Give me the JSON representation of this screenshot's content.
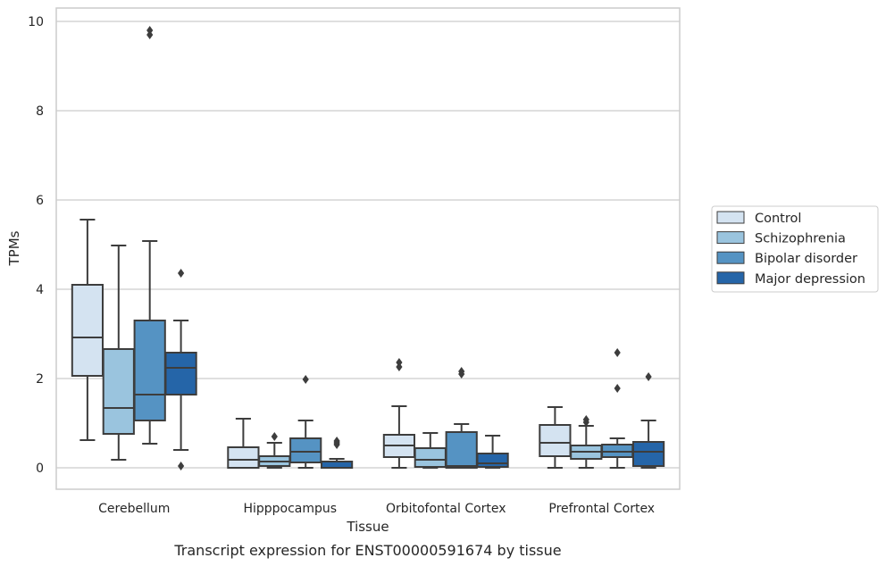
{
  "caption": "Transcript expression for ENST00000591674 by tissue",
  "chart_data": {
    "type": "box",
    "xlabel": "Tissue",
    "ylabel": "TPMs",
    "ylim": [
      -0.48,
      10.3
    ],
    "yticks": [
      0,
      2,
      4,
      6,
      8,
      10
    ],
    "grid": "horizontal",
    "legend_position": "right",
    "categories": [
      "Cerebellum",
      "Hipppocampus",
      "Orbitofontal Cortex",
      "Prefrontal Cortex"
    ],
    "series": [
      {
        "name": "Control",
        "color": "#d4e3f1",
        "boxes": [
          {
            "whislo": 0.62,
            "q1": 2.06,
            "med": 2.92,
            "q3": 4.1,
            "whishi": 5.56,
            "fliers": []
          },
          {
            "whislo": 0.0,
            "q1": 0.0,
            "med": 0.18,
            "q3": 0.46,
            "whishi": 1.1,
            "fliers": []
          },
          {
            "whislo": 0.0,
            "q1": 0.24,
            "med": 0.5,
            "q3": 0.74,
            "whishi": 1.38,
            "fliers": [
              2.26,
              2.36
            ]
          },
          {
            "whislo": 0.0,
            "q1": 0.26,
            "med": 0.56,
            "q3": 0.96,
            "whishi": 1.36,
            "fliers": []
          }
        ]
      },
      {
        "name": "Schizophrenia",
        "color": "#9ac4de",
        "boxes": [
          {
            "whislo": 0.18,
            "q1": 0.76,
            "med": 1.34,
            "q3": 2.66,
            "whishi": 4.98,
            "fliers": []
          },
          {
            "whislo": 0.0,
            "q1": 0.04,
            "med": 0.14,
            "q3": 0.26,
            "whishi": 0.56,
            "fliers": [
              0.7
            ]
          },
          {
            "whislo": 0.0,
            "q1": 0.02,
            "med": 0.18,
            "q3": 0.44,
            "whishi": 0.78,
            "fliers": []
          },
          {
            "whislo": 0.0,
            "q1": 0.2,
            "med": 0.36,
            "q3": 0.5,
            "whishi": 0.94,
            "fliers": [
              1.02,
              1.08
            ]
          }
        ]
      },
      {
        "name": "Bipolar disorder",
        "color": "#5593c3",
        "boxes": [
          {
            "whislo": 0.54,
            "q1": 1.06,
            "med": 1.64,
            "q3": 3.3,
            "whishi": 5.08,
            "fliers": [
              9.7,
              9.8
            ]
          },
          {
            "whislo": 0.0,
            "q1": 0.12,
            "med": 0.36,
            "q3": 0.66,
            "whishi": 1.06,
            "fliers": [
              1.98
            ]
          },
          {
            "whislo": 0.0,
            "q1": 0.0,
            "med": 0.04,
            "q3": 0.8,
            "whishi": 0.98,
            "fliers": [
              2.1,
              2.16
            ]
          },
          {
            "whislo": 0.0,
            "q1": 0.24,
            "med": 0.36,
            "q3": 0.52,
            "whishi": 0.66,
            "fliers": [
              1.78,
              2.58
            ]
          }
        ]
      },
      {
        "name": "Major depression",
        "color": "#2565a8",
        "boxes": [
          {
            "whislo": 0.4,
            "q1": 1.64,
            "med": 2.24,
            "q3": 2.58,
            "whishi": 3.3,
            "fliers": [
              0.04,
              4.36
            ]
          },
          {
            "whislo": 0.0,
            "q1": 0.0,
            "med": 0.0,
            "q3": 0.14,
            "whishi": 0.2,
            "fliers": [
              0.52,
              0.56,
              0.6
            ]
          },
          {
            "whislo": 0.0,
            "q1": 0.02,
            "med": 0.1,
            "q3": 0.32,
            "whishi": 0.72,
            "fliers": []
          },
          {
            "whislo": 0.0,
            "q1": 0.04,
            "med": 0.36,
            "q3": 0.58,
            "whishi": 1.06,
            "fliers": [
              2.04
            ]
          }
        ]
      }
    ]
  }
}
